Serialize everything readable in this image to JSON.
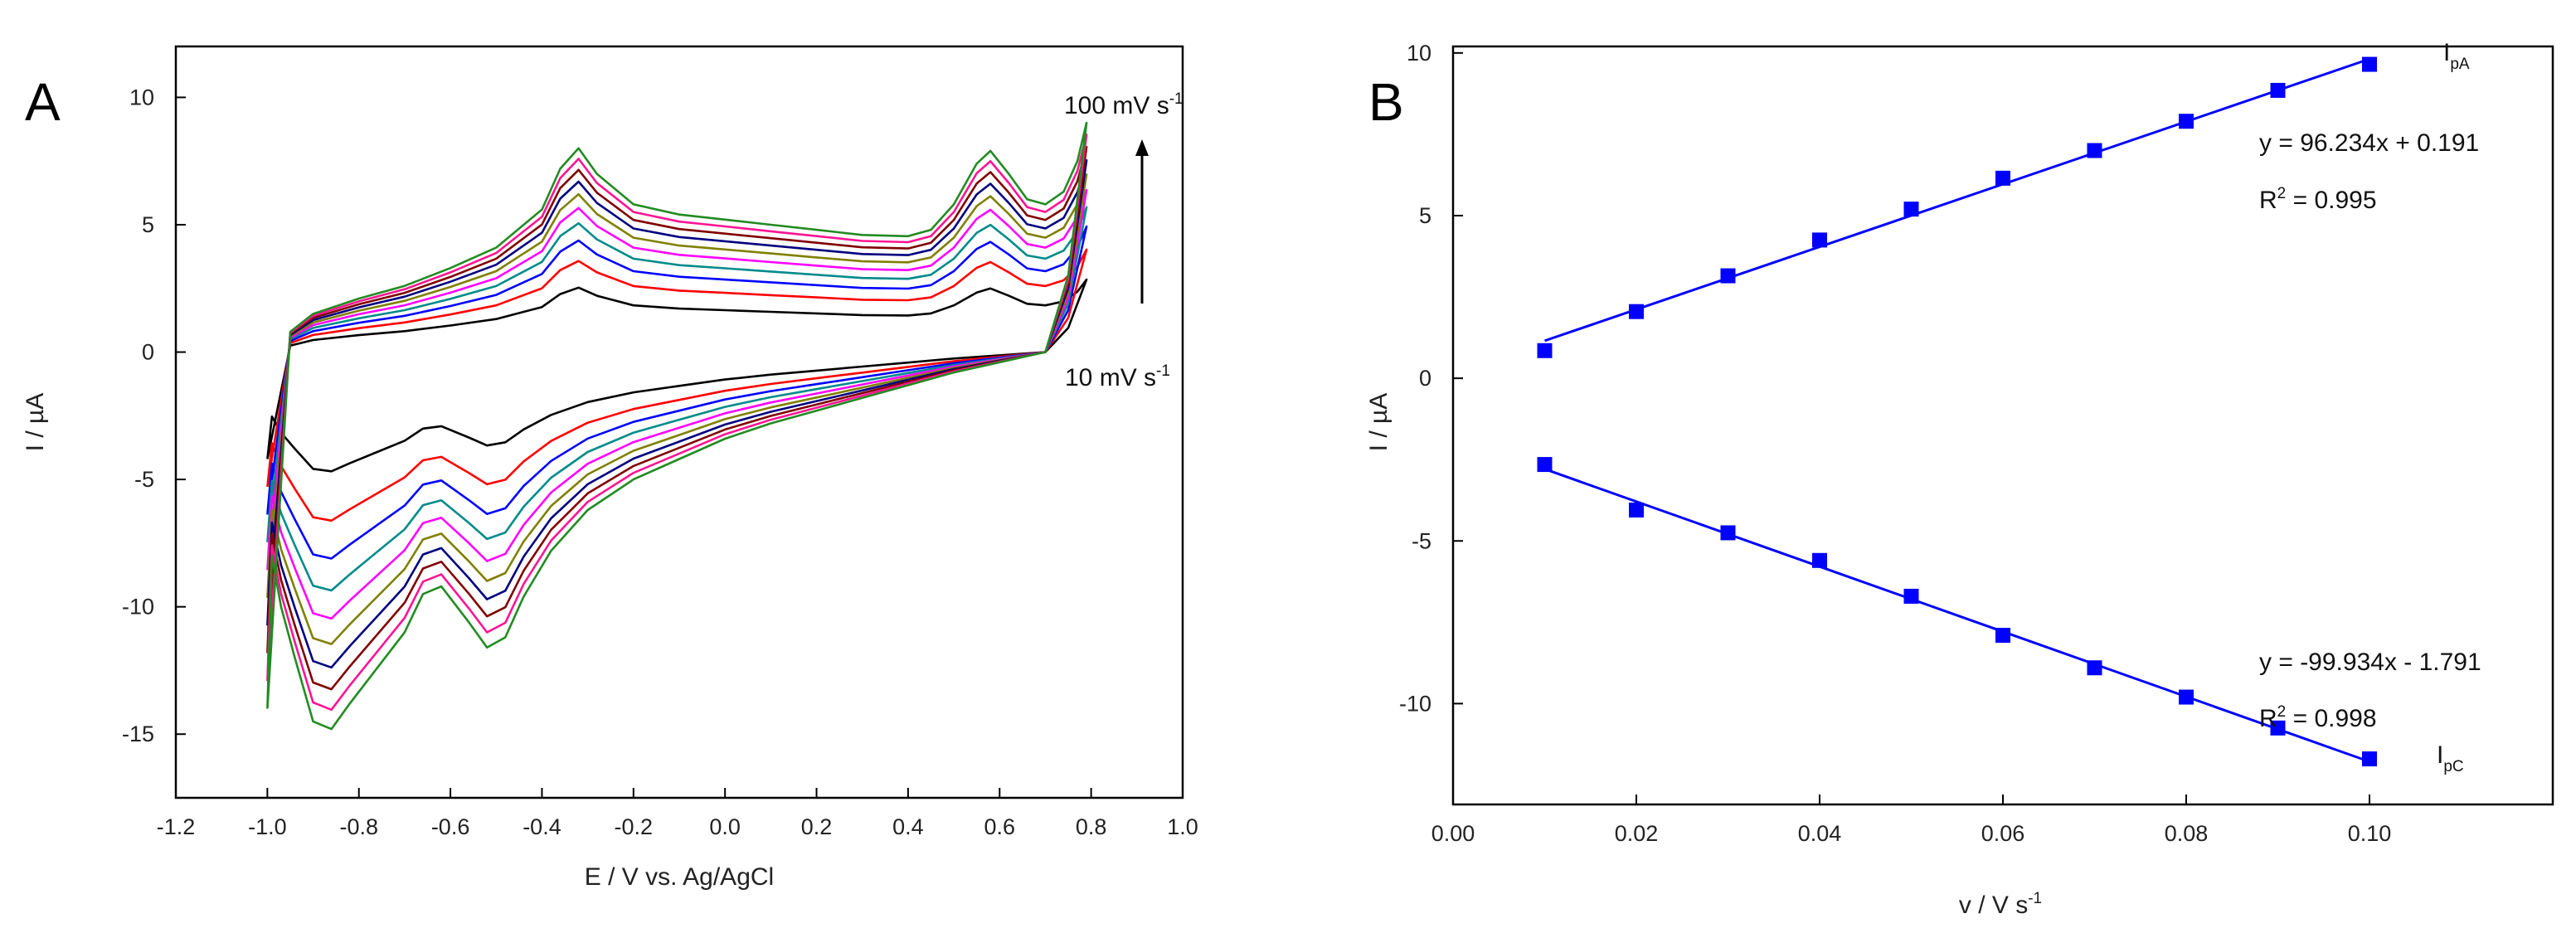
{
  "chart_data": [
    {
      "panel_label": "A",
      "type": "line",
      "title": "",
      "xlabel": "E / V vs. Ag/AgCl",
      "ylabel": "I / µA",
      "xlim": [
        -1.2,
        1.0
      ],
      "ylim": [
        -17.5,
        12
      ],
      "xticks": [
        -1.2,
        -1.0,
        -0.8,
        -0.6,
        -0.4,
        -0.2,
        0.0,
        0.2,
        0.4,
        0.6,
        0.8,
        1.0
      ],
      "xtick_labels": [
        "-1.2",
        "-1.0",
        "-0.8",
        "-0.6",
        "-0.4",
        "-0.2",
        "0.0",
        "0.2",
        "0.4",
        "0.6",
        "0.8",
        "1.0"
      ],
      "yticks": [
        -15,
        -10,
        -5,
        0,
        5,
        10
      ],
      "ytick_labels": [
        "-15",
        "-10",
        "-5",
        "0",
        "5",
        "10"
      ],
      "annotations": {
        "top_main": "100 mV s",
        "top_sup": "-1",
        "bottom_main": "10 mV s",
        "bottom_sup": "-1"
      },
      "scan_rates_mV_s": [
        10,
        20,
        30,
        40,
        50,
        60,
        70,
        80,
        90,
        100
      ],
      "series_colors": [
        "#000000",
        "#ff0000",
        "#0000ff",
        "#008b8b",
        "#ff00ff",
        "#808000",
        "#000080",
        "#800000",
        "#ff1493",
        "#228b22"
      ],
      "anodic_template": {
        "x": [
          -1.0,
          -0.95,
          -0.9,
          -0.8,
          -0.7,
          -0.6,
          -0.5,
          -0.4,
          -0.36,
          -0.32,
          -0.28,
          -0.2,
          -0.1,
          0.0,
          0.1,
          0.2,
          0.3,
          0.4,
          0.45,
          0.5,
          0.55,
          0.58,
          0.62,
          0.66,
          0.7,
          0.74,
          0.77,
          0.79
        ],
        "y": [
          -1.2,
          0.8,
          1.5,
          2.1,
          2.6,
          3.3,
          4.1,
          5.6,
          7.2,
          8.0,
          7.0,
          5.8,
          5.4,
          5.2,
          5.0,
          4.8,
          4.6,
          4.55,
          4.8,
          5.8,
          7.4,
          7.9,
          7.0,
          6.0,
          5.8,
          6.3,
          7.5,
          9.0
        ]
      },
      "cathodic_template": {
        "x": [
          0.79,
          0.75,
          0.7,
          0.6,
          0.5,
          0.4,
          0.3,
          0.2,
          0.1,
          0.0,
          -0.1,
          -0.2,
          -0.3,
          -0.38,
          -0.44,
          -0.48,
          -0.52,
          -0.56,
          -0.62,
          -0.66,
          -0.7,
          -0.76,
          -0.82,
          -0.86,
          -0.9,
          -0.94,
          -0.97,
          -0.99,
          -1.0
        ],
        "y": [
          9.0,
          3.0,
          0.0,
          -0.4,
          -0.8,
          -1.3,
          -1.8,
          -2.3,
          -2.8,
          -3.4,
          -4.2,
          -5.0,
          -6.2,
          -7.8,
          -9.6,
          -11.2,
          -11.6,
          -10.6,
          -9.2,
          -9.5,
          -11.0,
          -12.4,
          -13.8,
          -14.8,
          -14.5,
          -12.0,
          -10.0,
          -8.0,
          -1.2
        ]
      },
      "start_bottom_y_10": -4.2,
      "start_bottom_y_100": -14.0
    },
    {
      "panel_label": "B",
      "type": "scatter",
      "title": "",
      "xlabel": "v / V s",
      "xlabel_sup": "-1",
      "ylabel": "I / µA",
      "xlim": [
        0.0,
        0.12
      ],
      "ylim": [
        -13.1,
        10.2
      ],
      "xticks": [
        0.0,
        0.02,
        0.04,
        0.06,
        0.08,
        0.1
      ],
      "xtick_labels": [
        "0.00",
        "0.02",
        "0.04",
        "0.06",
        "0.08",
        "0.10"
      ],
      "yticks": [
        -10,
        -5,
        0,
        5,
        10
      ],
      "ytick_labels": [
        "-10",
        "-5",
        "0",
        "5",
        "10"
      ],
      "color": "#0000ff",
      "series": [
        {
          "name": "I",
          "name_sub": "pA",
          "x": [
            0.01,
            0.02,
            0.03,
            0.04,
            0.05,
            0.06,
            0.07,
            0.08,
            0.09,
            0.1
          ],
          "y": [
            0.85,
            2.05,
            3.15,
            4.25,
            5.2,
            6.15,
            7.0,
            7.9,
            8.85,
            9.65
          ],
          "fit": {
            "slope": 96.234,
            "intercept": 0.191
          },
          "equation": "y = 96.234x + 0.191",
          "r2_label": "R",
          "r2_sup": "2",
          "r2_value": " = 0.995"
        },
        {
          "name": "I",
          "name_sub": "pC",
          "x": [
            0.01,
            0.02,
            0.03,
            0.04,
            0.05,
            0.06,
            0.07,
            0.08,
            0.09,
            0.1
          ],
          "y": [
            -2.65,
            -4.05,
            -4.75,
            -5.6,
            -6.7,
            -7.9,
            -8.9,
            -9.8,
            -10.75,
            -11.7
          ],
          "fit": {
            "slope": -99.934,
            "intercept": -1.791
          },
          "equation": "y = -99.934x - 1.791",
          "r2_label": "R",
          "r2_sup": "2",
          "r2_value": " = 0.998"
        }
      ]
    }
  ]
}
